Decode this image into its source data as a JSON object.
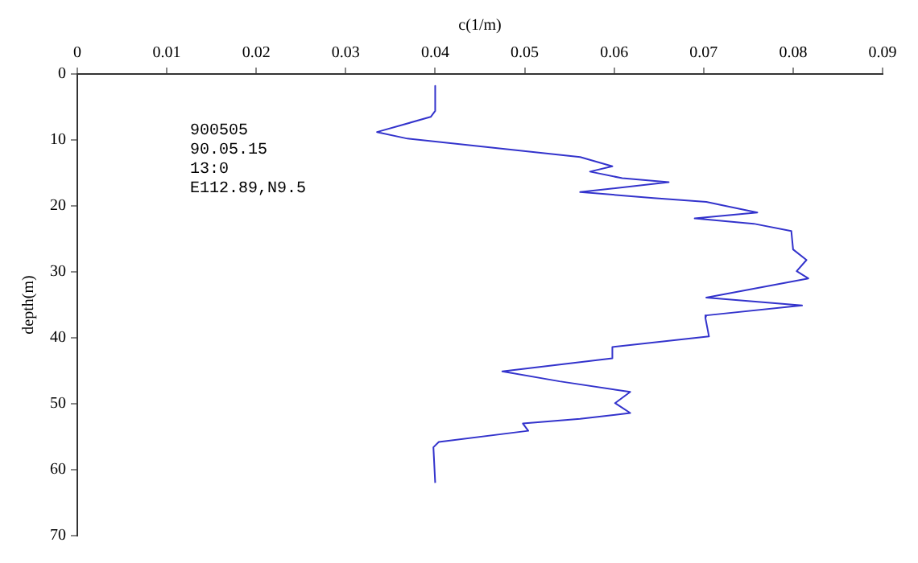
{
  "chart_data": {
    "type": "line",
    "xlabel": "c(1/m)",
    "ylabel": "depth(m)",
    "annotations": [
      "900505",
      "90.05.15",
      "13:0",
      "E112.89,N9.5"
    ],
    "series": [
      {
        "color": "#3333cc",
        "x": [
          0.04,
          0.04,
          0.0395,
          0.0335,
          0.0369,
          0.048,
          0.0562,
          0.0598,
          0.0573,
          0.0609,
          0.0661,
          0.0562,
          0.0644,
          0.0703,
          0.076,
          0.069,
          0.0756,
          0.0798,
          0.08,
          0.0815,
          0.0804,
          0.0817,
          0.0703,
          0.081,
          0.0703,
          0.0702,
          0.0706,
          0.0598,
          0.0598,
          0.0475,
          0.0539,
          0.0618,
          0.0601,
          0.0618,
          0.0562,
          0.0498,
          0.0504,
          0.0404,
          0.0398,
          0.04
        ],
        "values": [
          1.8,
          5.6,
          6.5,
          8.8,
          9.8,
          11.4,
          12.6,
          14.0,
          14.8,
          15.8,
          16.4,
          17.9,
          18.8,
          19.4,
          21.0,
          21.9,
          22.7,
          23.8,
          26.6,
          28.2,
          29.9,
          31.0,
          33.9,
          35.1,
          36.6,
          37.0,
          39.8,
          41.4,
          43.1,
          45.1,
          46.6,
          48.2,
          49.9,
          51.4,
          52.3,
          53.0,
          54.1,
          55.8,
          56.6,
          62.0
        ]
      }
    ],
    "xlim": [
      0,
      0.09
    ],
    "xticks": [
      0,
      0.01,
      0.02,
      0.03,
      0.04,
      0.05,
      0.06,
      0.07,
      0.08,
      0.09
    ],
    "ylim": [
      70,
      0
    ],
    "yticks": [
      0,
      10,
      20,
      30,
      40,
      50,
      60,
      70
    ],
    "grid": false,
    "legend": false,
    "line_style": "solid",
    "marker": "none"
  }
}
